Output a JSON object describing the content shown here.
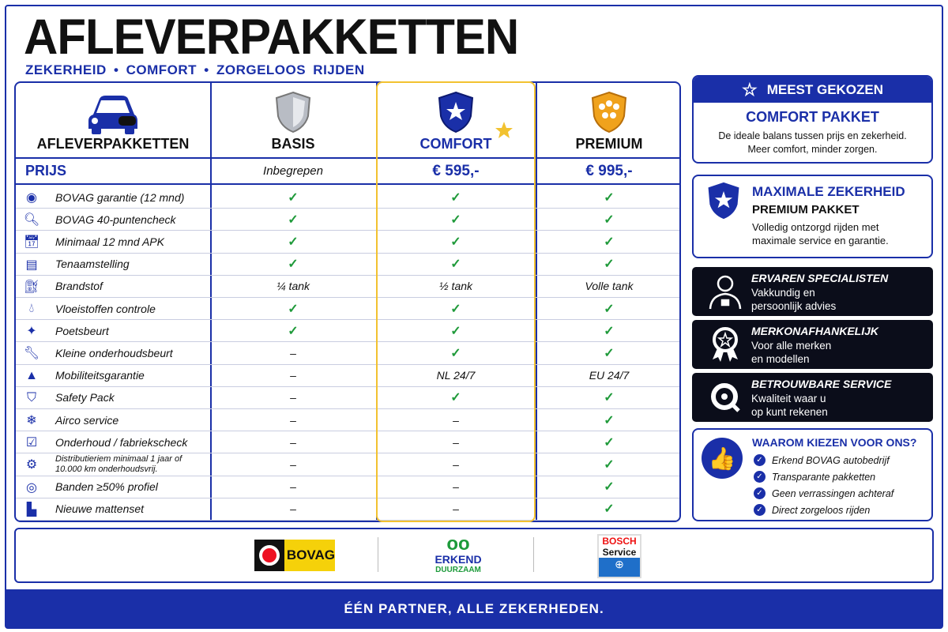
{
  "title": "AFLEVERPAKKETTEN",
  "subtitle": "ZEKERHEID  •  COMFORT  •  ZORGELOOS RIJDEN",
  "table": {
    "header_label": "AFLEVERPAKKETTEN",
    "columns": [
      "BASIS",
      "COMFORT",
      "PREMIUM"
    ],
    "price_label": "PRIJS",
    "prices": [
      "Inbegrepen",
      "€ 595,-",
      "€ 995,-"
    ],
    "rows": [
      {
        "icon": "bovag-icon",
        "label": "BOVAG garantie (12 mnd)",
        "values": [
          "check",
          "check",
          "check"
        ]
      },
      {
        "icon": "search-icon",
        "label": "BOVAG 40-puntencheck",
        "values": [
          "check",
          "check",
          "check"
        ]
      },
      {
        "icon": "calendar-icon",
        "label": "Minimaal 12 mnd APK",
        "values": [
          "check",
          "check",
          "check"
        ]
      },
      {
        "icon": "document-icon",
        "label": "Tenaamstelling",
        "values": [
          "check",
          "check",
          "check"
        ]
      },
      {
        "icon": "fuel-icon",
        "label": "Brandstof",
        "values": [
          "¼ tank",
          "½ tank",
          "Volle tank"
        ]
      },
      {
        "icon": "drop-icon",
        "label": "Vloeistoffen controle",
        "values": [
          "check",
          "check",
          "check"
        ]
      },
      {
        "icon": "sparkle-icon",
        "label": "Poetsbeurt",
        "values": [
          "check",
          "check",
          "check"
        ]
      },
      {
        "icon": "wrench-icon",
        "label": "Kleine onderhoudsbeurt",
        "values": [
          "–",
          "check",
          "check"
        ]
      },
      {
        "icon": "road-icon",
        "label": "Mobiliteitsgarantie",
        "values": [
          "–",
          "NL 24/7",
          "EU 24/7"
        ]
      },
      {
        "icon": "shield-icon",
        "label": "Safety Pack",
        "values": [
          "–",
          "check",
          "check"
        ]
      },
      {
        "icon": "snowflake-icon",
        "label": "Airco service",
        "values": [
          "–",
          "–",
          "check"
        ]
      },
      {
        "icon": "clipboard-icon",
        "label": "Onderhoud / fabriekscheck",
        "values": [
          "–",
          "–",
          "check"
        ]
      },
      {
        "icon": "gear-icon",
        "label": "Distributieriem minimaal 1 jaar of 10.000 km onderhoudsvrij.",
        "values": [
          "–",
          "–",
          "check"
        ]
      },
      {
        "icon": "tire-icon",
        "label": "Banden ≥50% profiel",
        "values": [
          "–",
          "–",
          "check"
        ]
      },
      {
        "icon": "mat-icon",
        "label": "Nieuwe mattenset",
        "values": [
          "–",
          "–",
          "check"
        ]
      }
    ]
  },
  "side": {
    "popular": {
      "badge": "MEEST GEKOZEN",
      "title": "COMFORT PAKKET",
      "text1": "De ideale balans tussen prijs en zekerheid.",
      "text2": "Meer comfort, minder zorgen."
    },
    "premium": {
      "title": "MAXIMALE ZEKERHEID",
      "subtitle": "PREMIUM PAKKET",
      "text1": "Volledig ontzorgd rijden met",
      "text2": "maximale service en garantie."
    },
    "features": [
      {
        "title": "ERVAREN SPECIALISTEN",
        "line1": "Vakkundig en",
        "line2": "persoonlijk advies"
      },
      {
        "title": "MERKONAFHANKELIJK",
        "line1": "Voor alle merken",
        "line2": "en modellen"
      },
      {
        "title": "BETROUWBARE SERVICE",
        "line1": "Kwaliteit waar u",
        "line2": "op kunt rekenen"
      }
    ],
    "why": {
      "title": "WAAROM KIEZEN VOOR ONS?",
      "items": [
        "Erkend BOVAG autobedrijf",
        "Transparante pakketten",
        "Geen verrassingen achteraf",
        "Direct zorgeloos rijden"
      ]
    }
  },
  "logos": {
    "bovag": "BOVAG",
    "erkend1": "ERKEND",
    "erkend2": "DUURZAAM",
    "bosch1": "BOSCH",
    "bosch2": "Service"
  },
  "footer": "ÉÉN PARTNER, ALLE ZEKERHEDEN.",
  "colors": {
    "brand": "#1a2fa8",
    "gold": "#f2c230",
    "check": "#1f9a3a",
    "dark": "#0b0d1a"
  }
}
